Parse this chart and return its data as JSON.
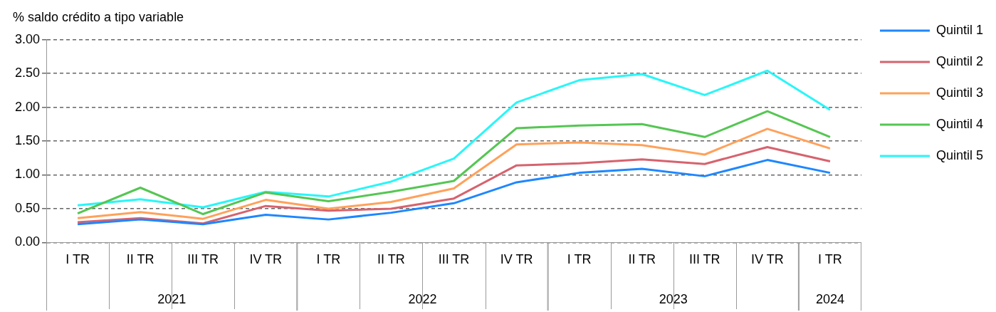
{
  "chart_data": {
    "type": "line",
    "ylabel": "% saldo crédito a tipo variable",
    "categories": [
      "I TR",
      "II TR",
      "III TR",
      "IV TR",
      "I TR",
      "II TR",
      "III TR",
      "IV TR",
      "I TR",
      "II TR",
      "III TR",
      "IV TR",
      "I TR"
    ],
    "annotations": [
      "2021",
      "2022",
      "2023",
      "2024"
    ],
    "series": [
      {
        "name": "Quintil 1",
        "color": "#1e87ff",
        "values": [
          0.27,
          0.34,
          0.27,
          0.41,
          0.34,
          0.44,
          0.58,
          0.89,
          1.03,
          1.09,
          0.98,
          1.22,
          1.03
        ]
      },
      {
        "name": "Quintil 2",
        "color": "#d6636e",
        "values": [
          0.3,
          0.36,
          0.28,
          0.54,
          0.47,
          0.5,
          0.65,
          1.14,
          1.17,
          1.23,
          1.16,
          1.41,
          1.2
        ]
      },
      {
        "name": "Quintil 3",
        "color": "#ffa15a",
        "values": [
          0.36,
          0.45,
          0.35,
          0.63,
          0.5,
          0.6,
          0.8,
          1.45,
          1.48,
          1.44,
          1.3,
          1.68,
          1.39
        ]
      },
      {
        "name": "Quintil 4",
        "color": "#55c653",
        "values": [
          0.43,
          0.81,
          0.42,
          0.74,
          0.61,
          0.75,
          0.91,
          1.69,
          1.73,
          1.75,
          1.56,
          1.94,
          1.56
        ]
      },
      {
        "name": "Quintil 5",
        "color": "#28f6f8",
        "values": [
          0.55,
          0.64,
          0.52,
          0.75,
          0.68,
          0.9,
          1.24,
          2.07,
          2.4,
          2.49,
          2.18,
          2.54,
          1.96
        ]
      }
    ],
    "ylim": [
      0,
      3
    ],
    "yticks": [
      {
        "value": 0,
        "label": "0.00"
      },
      {
        "value": 0.5,
        "label": "0.50"
      },
      {
        "value": 1,
        "label": "1.00"
      },
      {
        "value": 1.5,
        "label": "1.50"
      },
      {
        "value": 2,
        "label": "2.00"
      },
      {
        "value": 2.5,
        "label": "2.50"
      },
      {
        "value": 3,
        "label": "3.00"
      }
    ],
    "grid": "y",
    "legend": "right",
    "marker": "none",
    "line_style": "solid"
  }
}
